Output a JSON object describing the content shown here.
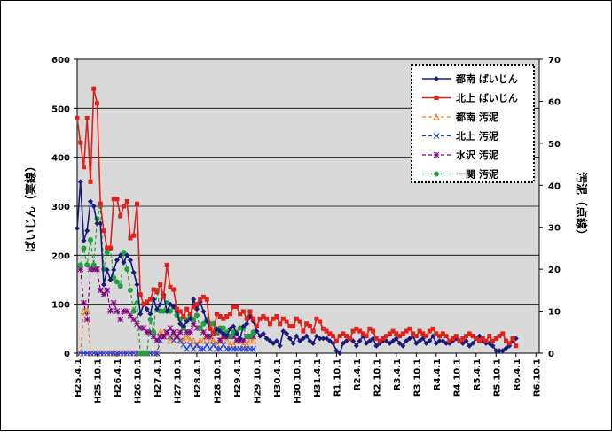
{
  "chart_data": {
    "type": "line",
    "ylabel_left": "ばいじん（実線）",
    "ylabel_right": "汚泥（点線）",
    "ylim_left": [
      0,
      600
    ],
    "ylim_right": [
      0,
      70
    ],
    "yticks_left": [
      "0",
      "100",
      "200",
      "300",
      "400",
      "500",
      "600"
    ],
    "yticks_right": [
      "0",
      "10",
      "20",
      "30",
      "40",
      "50",
      "60",
      "70"
    ],
    "grid": true,
    "legend_position": "top-right",
    "x_start": "H25.4",
    "x_step_months": 1,
    "x_tick_labels": [
      "H25.4.1",
      "H25.10.1",
      "H26.4.1",
      "H26.10.1",
      "H27.4.1",
      "H27.10.1",
      "H28.4.1",
      "H28.10.1",
      "H29.4.1",
      "H29.10.1",
      "H30.4.1",
      "H30.10.1",
      "H31.4.1",
      "R1.10.1",
      "R2.4.1",
      "R2.10.1",
      "R3.4.1",
      "R3.10.1",
      "R4.4.1",
      "R4.10.1",
      "R5.4.1",
      "R5.10.1",
      "R6.4.1",
      "R6.10.1"
    ],
    "series": [
      {
        "name": "都南 ばいじん",
        "axis": "left",
        "color": "#1a1a7a",
        "marker": "diamond",
        "dash": "",
        "values": [
          255,
          350,
          230,
          250,
          310,
          300,
          265,
          265,
          140,
          170,
          150,
          170,
          190,
          200,
          185,
          200,
          190,
          165,
          140,
          80,
          100,
          90,
          80,
          110,
          90,
          100,
          120,
          85,
          100,
          95,
          85,
          60,
          55,
          65,
          70,
          110,
          90,
          105,
          85,
          65,
          50,
          40,
          50,
          45,
          40,
          35,
          50,
          55,
          40,
          30,
          55,
          60,
          75,
          65,
          45,
          35,
          40,
          30,
          25,
          20,
          25,
          15,
          45,
          40,
          30,
          20,
          35,
          25,
          30,
          35,
          25,
          20,
          35,
          30,
          30,
          30,
          25,
          20,
          5,
          0,
          20,
          25,
          30,
          25,
          15,
          25,
          35,
          20,
          25,
          30,
          15,
          20,
          25,
          25,
          20,
          25,
          30,
          20,
          15,
          25,
          30,
          35,
          20,
          25,
          30,
          20,
          25,
          35,
          20,
          25,
          25,
          20,
          20,
          25,
          30,
          25,
          20,
          25,
          15,
          20,
          30,
          35,
          25,
          20,
          20,
          15,
          5,
          5,
          5,
          10,
          15,
          25,
          30
        ]
      },
      {
        "name": "北上 ばいじん",
        "axis": "left",
        "color": "#e0201a",
        "marker": "square",
        "dash": "",
        "values": [
          480,
          430,
          380,
          480,
          350,
          540,
          510,
          305,
          250,
          215,
          215,
          315,
          315,
          280,
          300,
          310,
          235,
          240,
          305,
          120,
          100,
          105,
          110,
          130,
          125,
          140,
          115,
          180,
          135,
          130,
          90,
          85,
          75,
          90,
          80,
          95,
          100,
          110,
          115,
          110,
          50,
          40,
          80,
          75,
          70,
          75,
          80,
          95,
          95,
          80,
          85,
          70,
          85,
          70,
          55,
          70,
          75,
          70,
          60,
          70,
          75,
          60,
          70,
          65,
          55,
          55,
          70,
          65,
          45,
          60,
          55,
          45,
          70,
          65,
          50,
          45,
          40,
          35,
          25,
          35,
          40,
          35,
          30,
          45,
          50,
          45,
          40,
          35,
          50,
          45,
          30,
          25,
          30,
          35,
          40,
          45,
          40,
          35,
          40,
          45,
          50,
          40,
          35,
          45,
          40,
          35,
          45,
          50,
          40,
          35,
          40,
          35,
          25,
          30,
          35,
          25,
          30,
          35,
          40,
          35,
          30,
          25,
          30,
          25,
          35,
          25,
          30,
          35,
          40,
          25,
          20,
          30,
          15
        ]
      },
      {
        "name": "都南 汚泥",
        "axis": "right",
        "color": "#f08020",
        "marker": "triangle",
        "dash": "4,3",
        "values": [
          null,
          0,
          10,
          10,
          0,
          0,
          0,
          0,
          0,
          0,
          0,
          0,
          0,
          0,
          0,
          0,
          0,
          0,
          0,
          0,
          0,
          0,
          0,
          0,
          0,
          5,
          5,
          4,
          3,
          4,
          4,
          3,
          3,
          4,
          3,
          3,
          2,
          3,
          3,
          4,
          3,
          3,
          2,
          3,
          4,
          3,
          2,
          2,
          3,
          3,
          2,
          2,
          3,
          3
        ]
      },
      {
        "name": "北上 汚泥",
        "axis": "right",
        "color": "#2040e0",
        "marker": "x",
        "dash": "4,3",
        "values": [
          null,
          0,
          0,
          0,
          0,
          0,
          0,
          0,
          0,
          0,
          0,
          0,
          0,
          0,
          0,
          0,
          0,
          0,
          0,
          0,
          0,
          0,
          0,
          0,
          0,
          3,
          4,
          5,
          4,
          3,
          4,
          3,
          2,
          1,
          2,
          1,
          2,
          1,
          1,
          2,
          1,
          2,
          1,
          1,
          2,
          1,
          1,
          1,
          1,
          1,
          1,
          1,
          1,
          1
        ]
      },
      {
        "name": "水沢 汚泥",
        "axis": "right",
        "color": "#800080",
        "marker": "star",
        "dash": "4,3",
        "values": [
          null,
          20,
          12,
          8,
          20,
          20,
          20,
          15,
          14,
          15,
          10,
          12,
          10,
          8,
          10,
          10,
          9,
          8,
          7,
          6,
          6,
          5,
          5,
          4,
          3,
          4,
          4,
          5,
          6,
          5,
          4,
          5,
          6,
          5,
          5,
          7,
          6,
          6,
          5,
          4,
          4,
          5,
          5,
          3,
          4,
          4,
          4,
          4,
          3,
          3,
          3,
          4,
          4,
          4
        ]
      },
      {
        "name": "一関 汚泥",
        "axis": "right",
        "color": "#20a040",
        "marker": "circle",
        "dash": "4,3",
        "values": [
          null,
          21,
          25,
          21,
          27,
          21,
          32,
          35,
          20,
          24,
          25,
          18,
          17,
          16,
          24,
          20,
          15,
          10,
          12,
          0,
          0,
          0,
          8,
          5,
          15,
          10,
          10,
          12,
          10,
          11,
          9,
          8,
          6,
          8,
          9,
          8,
          9,
          6,
          7,
          8,
          7,
          7,
          5,
          6,
          6,
          5,
          4,
          5,
          5,
          6,
          6,
          4,
          4,
          5
        ]
      }
    ]
  }
}
